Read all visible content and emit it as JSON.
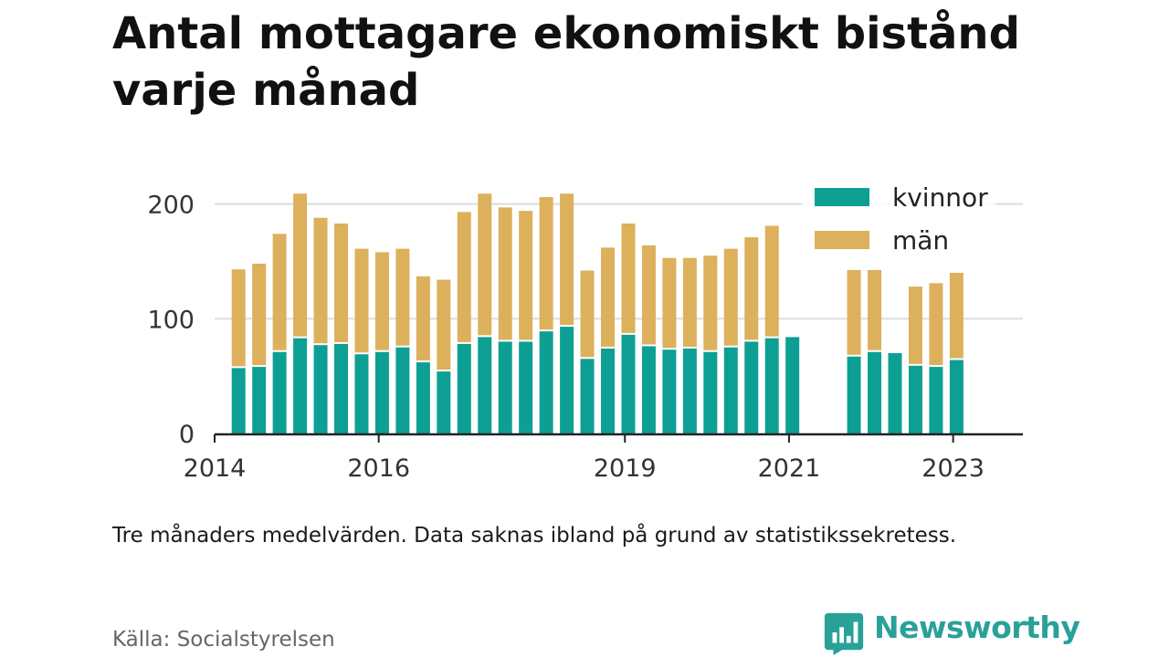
{
  "title": "Antal mottagare ekonomiskt bistånd varje månad",
  "note": "Tre månaders medelvärden. Data saknas ibland på grund av statistikssekretess.",
  "source": "Källa: Socialstyrelsen",
  "brand": "Newsworthy",
  "colors": {
    "kvinnor": "#0e9f94",
    "man": "#ddb05c",
    "grid": "#dddddd",
    "axis": "#222222",
    "brand": "#2aa198"
  },
  "chart_data": {
    "type": "bar",
    "stacked": true,
    "x_unit": "quarter",
    "x": [
      "2014-04",
      "2014-07",
      "2014-10",
      "2015-01",
      "2015-04",
      "2015-07",
      "2015-10",
      "2016-01",
      "2016-04",
      "2016-07",
      "2016-10",
      "2017-01",
      "2017-04",
      "2017-07",
      "2017-10",
      "2018-01",
      "2018-04",
      "2018-07",
      "2018-10",
      "2019-01",
      "2019-04",
      "2019-07",
      "2019-10",
      "2020-01",
      "2020-04",
      "2020-07",
      "2020-10",
      "2021-01",
      "2021-04",
      "2021-07",
      "2021-10",
      "2022-01",
      "2022-04",
      "2022-07",
      "2022-10",
      "2023-01"
    ],
    "series": [
      {
        "name": "kvinnor",
        "values": [
          57,
          58,
          71,
          83,
          77,
          78,
          69,
          71,
          75,
          62,
          54,
          78,
          84,
          80,
          80,
          89,
          93,
          65,
          74,
          86,
          76,
          73,
          74,
          71,
          75,
          80,
          83,
          84,
          null,
          null,
          67,
          71,
          70,
          59,
          58,
          64
        ]
      },
      {
        "name": "män",
        "values": [
          86,
          90,
          103,
          126,
          111,
          105,
          92,
          87,
          86,
          75,
          80,
          115,
          125,
          117,
          114,
          117,
          116,
          77,
          88,
          97,
          88,
          80,
          79,
          84,
          86,
          91,
          98,
          null,
          null,
          null,
          76,
          72,
          null,
          69,
          73,
          76
        ]
      }
    ],
    "ylim": [
      0,
      210
    ],
    "yticks": [
      "0",
      "100",
      "200"
    ],
    "xticks": [
      {
        "label": "2014",
        "x": "2014-01"
      },
      {
        "label": "2016",
        "x": "2016-01"
      },
      {
        "label": "2019",
        "x": "2019-01"
      },
      {
        "label": "2021",
        "x": "2021-01"
      },
      {
        "label": "2023",
        "x": "2023-01"
      }
    ],
    "grid": true,
    "legend_position": "top-right"
  }
}
